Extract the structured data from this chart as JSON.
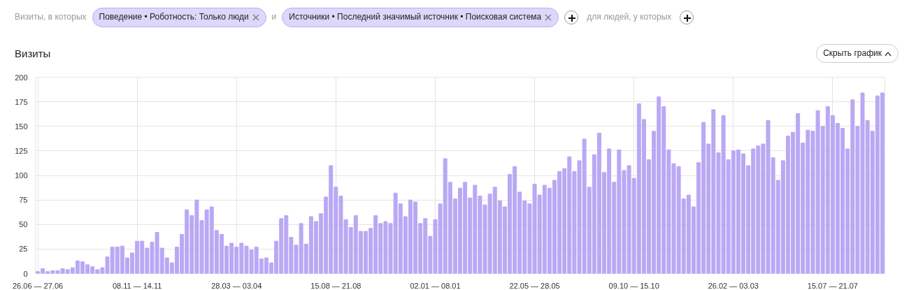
{
  "chart_data": {
    "type": "bar",
    "title": "Визиты",
    "annotations": [
      "Визиты, в которых",
      "Поведение • Роботность: Только люди",
      "и",
      "Источники • Последний значимый источник • Поисковая система",
      "для людей, у которых",
      "Скрыть график"
    ],
    "categories": [
      "26.06 — 27.06",
      null,
      null,
      null,
      null,
      null,
      null,
      null,
      null,
      null,
      null,
      null,
      null,
      null,
      null,
      null,
      null,
      null,
      null,
      null,
      "08.11 — 14.11",
      null,
      null,
      null,
      null,
      null,
      null,
      null,
      null,
      null,
      null,
      null,
      null,
      null,
      null,
      null,
      null,
      null,
      null,
      null,
      "28.03 — 03.04",
      null,
      null,
      null,
      null,
      null,
      null,
      null,
      null,
      null,
      null,
      null,
      null,
      null,
      null,
      null,
      null,
      null,
      null,
      null,
      "15.08 — 21.08",
      null,
      null,
      null,
      null,
      null,
      null,
      null,
      null,
      null,
      null,
      null,
      null,
      null,
      null,
      null,
      null,
      null,
      null,
      null,
      "02.01 — 08.01",
      null,
      null,
      null,
      null,
      null,
      null,
      null,
      null,
      null,
      null,
      null,
      null,
      null,
      null,
      null,
      null,
      null,
      null,
      null,
      "22.05 — 28.05",
      null,
      null,
      null,
      null,
      null,
      null,
      null,
      null,
      null,
      null,
      null,
      null,
      null,
      null,
      null,
      null,
      null,
      null,
      null,
      "09.10 — 15.10",
      null,
      null,
      null,
      null,
      null,
      null,
      null,
      null,
      null,
      null,
      null,
      null,
      null,
      null,
      null,
      null,
      null,
      null,
      null,
      "26.02 — 03.03",
      null,
      null,
      null,
      null,
      null,
      null,
      null,
      null,
      null,
      null,
      null,
      null,
      null,
      null,
      null,
      null,
      null,
      null,
      null,
      "15.07 — 21.07",
      null,
      null,
      null,
      null,
      null,
      null,
      null,
      null,
      null,
      null
    ],
    "values": [
      2,
      5,
      2,
      3,
      3,
      5,
      4,
      6,
      13,
      12,
      9,
      7,
      4,
      6,
      17,
      27,
      27,
      28,
      16,
      21,
      33,
      33,
      26,
      32,
      42,
      26,
      16,
      11,
      27,
      40,
      65,
      59,
      75,
      54,
      65,
      68,
      44,
      40,
      28,
      31,
      27,
      31,
      28,
      24,
      27,
      15,
      16,
      11,
      33,
      56,
      59,
      37,
      29,
      51,
      30,
      58,
      53,
      61,
      78,
      110,
      88,
      79,
      55,
      47,
      59,
      43,
      43,
      46,
      59,
      51,
      53,
      51,
      82,
      71,
      58,
      75,
      73,
      51,
      56,
      38,
      55,
      71,
      117,
      93,
      76,
      87,
      93,
      77,
      90,
      79,
      70,
      81,
      88,
      74,
      68,
      101,
      109,
      83,
      74,
      71,
      91,
      80,
      90,
      87,
      95,
      104,
      107,
      119,
      104,
      115,
      137,
      88,
      121,
      143,
      103,
      127,
      93,
      126,
      105,
      110,
      97,
      173,
      157,
      116,
      145,
      180,
      170,
      126,
      112,
      109,
      76,
      80,
      68,
      113,
      154,
      132,
      167,
      123,
      161,
      116,
      125,
      126,
      122,
      110,
      127,
      130,
      132,
      156,
      118,
      95,
      115,
      140,
      144,
      163,
      133,
      146,
      145,
      166,
      150,
      170,
      161,
      153,
      148,
      127,
      177,
      150,
      184,
      156,
      145,
      181,
      184
    ],
    "color": "#b9a8f4",
    "ylim": [
      0,
      200
    ],
    "yticks": [
      0,
      25,
      50,
      75,
      100,
      125,
      150,
      175,
      200
    ],
    "grid": true
  }
}
